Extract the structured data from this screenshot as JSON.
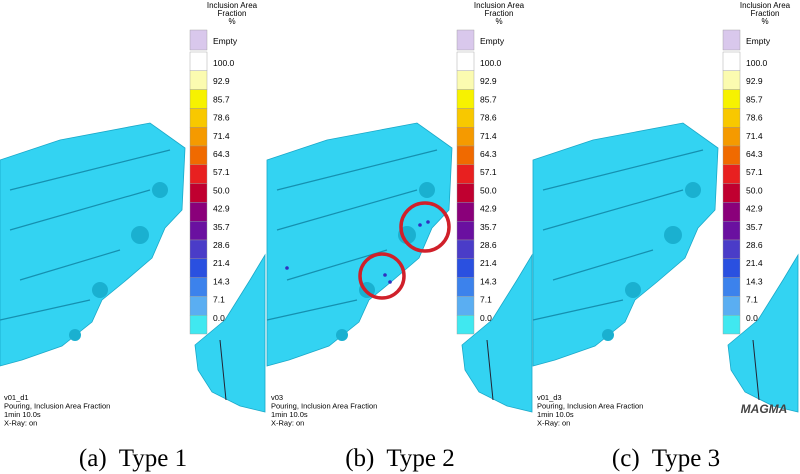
{
  "panels": [
    {
      "legend": {
        "title": [
          "Inclusion Area",
          "Fraction",
          "%"
        ],
        "labels": [
          "Empty",
          "100.0",
          "92.9",
          "85.7",
          "78.6",
          "71.4",
          "64.3",
          "57.1",
          "50.0",
          "42.9",
          "35.7",
          "28.6",
          "21.4",
          "14.3",
          "7.1",
          "0.0"
        ],
        "colors": [
          "#d9c8ec",
          "#ffffff",
          "#fbfbb0",
          "#f7f200",
          "#f8c800",
          "#f59a00",
          "#f06a00",
          "#e82020",
          "#c00030",
          "#8a007a",
          "#6a10a0",
          "#4a3cc8",
          "#2a50e0",
          "#3c82ec",
          "#5aaef2",
          "#40e8f0"
        ]
      },
      "info": [
        "v01_d1",
        "Pouring, Inclusion Area Fraction",
        "1min 10.0s",
        "X-Ray: on"
      ],
      "caption": "(a)  Type 1"
    },
    {
      "legend": {
        "title": [
          "Inclusion Area",
          "Fraction",
          "%"
        ],
        "labels": [
          "Empty",
          "100.0",
          "92.9",
          "85.7",
          "78.6",
          "71.4",
          "64.3",
          "57.1",
          "50.0",
          "42.9",
          "35.7",
          "28.6",
          "21.4",
          "14.3",
          "7.1",
          "0.0"
        ],
        "colors": [
          "#d9c8ec",
          "#ffffff",
          "#fbfbb0",
          "#f7f200",
          "#f8c800",
          "#f59a00",
          "#f06a00",
          "#e82020",
          "#c00030",
          "#8a007a",
          "#6a10a0",
          "#4a3cc8",
          "#2a50e0",
          "#3c82ec",
          "#5aaef2",
          "#40e8f0"
        ]
      },
      "info": [
        "v03",
        "Pouring, Inclusion Area Fraction",
        "1min 10.0s",
        "X-Ray: on"
      ],
      "caption": "(b)  Type 2"
    },
    {
      "legend": {
        "title": [
          "Inclusion Area",
          "Fraction",
          "%"
        ],
        "labels": [
          "Empty",
          "100.0",
          "92.9",
          "85.7",
          "78.6",
          "71.4",
          "64.3",
          "57.1",
          "50.0",
          "42.9",
          "35.7",
          "28.6",
          "21.4",
          "14.3",
          "7.1",
          "0.0"
        ],
        "colors": [
          "#d9c8ec",
          "#ffffff",
          "#fbfbb0",
          "#f7f200",
          "#f8c800",
          "#f59a00",
          "#f06a00",
          "#e82020",
          "#c00030",
          "#8a007a",
          "#6a10a0",
          "#4a3cc8",
          "#2a50e0",
          "#3c82ec",
          "#5aaef2",
          "#40e8f0"
        ]
      },
      "info": [
        "v01_d3",
        "Pouring, Inclusion Area Fraction",
        "1min 10.0s",
        "X-Ray: on"
      ],
      "caption": "(c)  Type 3"
    }
  ],
  "logo": "MAGMA"
}
